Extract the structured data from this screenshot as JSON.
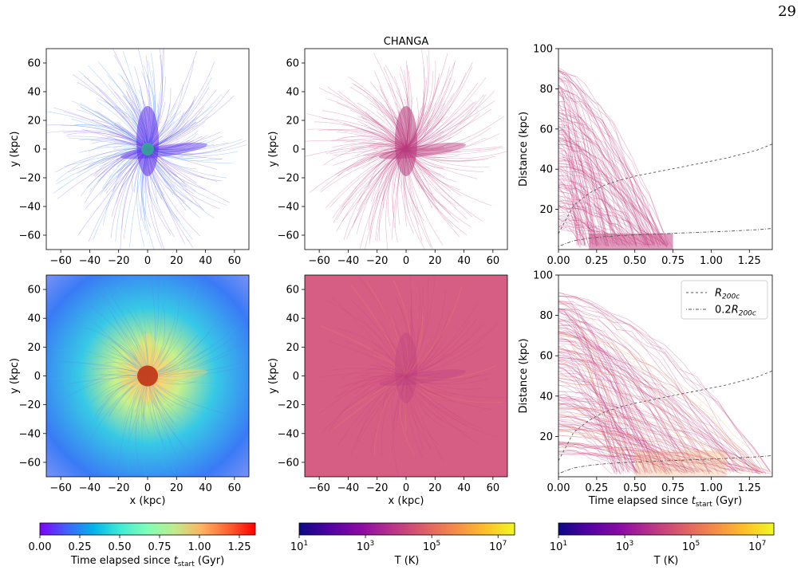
{
  "page": {
    "number": "29"
  },
  "colors": {
    "rainbow": [
      "#8000ff",
      "#4062fa",
      "#00b5eb",
      "#40ecd4",
      "#80ffb4",
      "#c0eb8d",
      "#ffb360",
      "#ff6230",
      "#ff0000"
    ],
    "plasma": [
      "#0d0887",
      "#5302a3",
      "#8b0aa5",
      "#b83289",
      "#db5c68",
      "#f48849",
      "#febc2a",
      "#f0f921"
    ],
    "traj_top": "#c43a7c",
    "traj_bottom": "#d2507a",
    "traj_warm": "#f0a050",
    "r200c_line": "#555555"
  },
  "chart_data": [
    {
      "id": "top-left",
      "type": "scatter",
      "title": "",
      "xlabel": "",
      "ylabel": "y (kpc)",
      "xlim": [
        -70,
        70
      ],
      "ylim": [
        -70,
        70
      ],
      "xticks": [
        -60,
        -40,
        -20,
        0,
        20,
        40,
        60
      ],
      "yticks": [
        -60,
        -40,
        -20,
        0,
        20,
        40,
        60
      ],
      "colormap": "rainbow",
      "color_variable": "Time elapsed since t_start (Gyr)"
    },
    {
      "id": "top-middle",
      "type": "scatter",
      "title": "CHANGA",
      "xlabel": "",
      "ylabel": "y (kpc)",
      "xlim": [
        -70,
        70
      ],
      "ylim": [
        -70,
        70
      ],
      "xticks": [
        -60,
        -40,
        -20,
        0,
        20,
        40,
        60
      ],
      "yticks": [
        -60,
        -40,
        -20,
        0,
        20,
        40,
        60
      ],
      "colormap": "plasma",
      "color_variable": "T (K)"
    },
    {
      "id": "top-right",
      "type": "line",
      "title": "",
      "xlabel": "",
      "ylabel": "Distance (kpc)",
      "xlim": [
        0,
        1.4
      ],
      "ylim": [
        0,
        100
      ],
      "xticks": [
        0.0,
        0.25,
        0.5,
        0.75,
        1.0,
        1.25
      ],
      "xtick_labels": [
        "0.00",
        "0.25",
        "0.50",
        "0.75",
        "1.00",
        "1.25"
      ],
      "yticks": [
        20,
        40,
        60,
        80,
        100
      ],
      "legend": null,
      "series": [
        {
          "name": "R200c",
          "style": "dashed",
          "x": [
            0.0,
            0.1,
            0.2,
            0.3,
            0.4,
            0.5,
            0.6,
            0.7,
            0.8,
            0.9,
            1.0,
            1.1,
            1.2,
            1.3,
            1.4
          ],
          "y": [
            8,
            22,
            28,
            32,
            34.5,
            36.5,
            38,
            39.5,
            41,
            42.5,
            44,
            45.5,
            47.5,
            49.5,
            52.5
          ]
        },
        {
          "name": "0.2R200c",
          "style": "dash-dot",
          "x": [
            0.0,
            0.1,
            0.2,
            0.3,
            0.4,
            0.5,
            0.6,
            0.7,
            0.8,
            0.9,
            1.0,
            1.1,
            1.2,
            1.3,
            1.4
          ],
          "y": [
            1.6,
            4.4,
            5.6,
            6.4,
            6.9,
            7.3,
            7.6,
            7.9,
            8.2,
            8.5,
            8.8,
            9.1,
            9.5,
            9.9,
            10.5
          ]
        }
      ]
    },
    {
      "id": "bottom-left",
      "type": "scatter",
      "title": "",
      "xlabel": "x (kpc)",
      "ylabel": "y (kpc)",
      "xlim": [
        -70,
        70
      ],
      "ylim": [
        -70,
        70
      ],
      "xticks": [
        -60,
        -40,
        -20,
        0,
        20,
        40,
        60
      ],
      "yticks": [
        -60,
        -40,
        -20,
        0,
        20,
        40,
        60
      ],
      "colormap": "rainbow",
      "color_variable": "Time elapsed since t_start (Gyr)"
    },
    {
      "id": "bottom-middle",
      "type": "scatter",
      "title": "",
      "xlabel": "x (kpc)",
      "ylabel": "y (kpc)",
      "xlim": [
        -70,
        70
      ],
      "ylim": [
        -70,
        70
      ],
      "xticks": [
        -60,
        -40,
        -20,
        0,
        20,
        40,
        60
      ],
      "yticks": [
        -60,
        -40,
        -20,
        0,
        20,
        40,
        60
      ],
      "colormap": "plasma",
      "color_variable": "T (K)"
    },
    {
      "id": "bottom-right",
      "type": "line",
      "title": "",
      "xlabel": "Time elapsed since t_start (Gyr)",
      "ylabel": "Distance (kpc)",
      "xlim": [
        0,
        1.4
      ],
      "ylim": [
        0,
        100
      ],
      "xticks": [
        0.0,
        0.25,
        0.5,
        0.75,
        1.0,
        1.25
      ],
      "xtick_labels": [
        "0.00",
        "0.25",
        "0.50",
        "0.75",
        "1.00",
        "1.25"
      ],
      "yticks": [
        20,
        40,
        60,
        80,
        100
      ],
      "legend": "top-right",
      "series": [
        {
          "name": "R200c",
          "style": "dashed",
          "x": [
            0.0,
            0.1,
            0.2,
            0.3,
            0.4,
            0.5,
            0.6,
            0.7,
            0.8,
            0.9,
            1.0,
            1.1,
            1.2,
            1.3,
            1.4
          ],
          "y": [
            8,
            22,
            28,
            32,
            34.5,
            36.5,
            38,
            39.5,
            41,
            42.5,
            44,
            45.5,
            47.5,
            49.5,
            52.5
          ]
        },
        {
          "name": "0.2R200c",
          "style": "dash-dot",
          "x": [
            0.0,
            0.1,
            0.2,
            0.3,
            0.4,
            0.5,
            0.6,
            0.7,
            0.8,
            0.9,
            1.0,
            1.1,
            1.2,
            1.3,
            1.4
          ],
          "y": [
            1.6,
            4.4,
            5.6,
            6.4,
            6.9,
            7.3,
            7.6,
            7.9,
            8.2,
            8.5,
            8.8,
            9.1,
            9.5,
            9.9,
            10.5
          ]
        }
      ]
    }
  ],
  "colorbars": [
    {
      "id": "cbar-time",
      "scale": "linear",
      "min": 0,
      "max": 1.35,
      "colormap": "rainbow",
      "ticks": [
        0.0,
        0.25,
        0.5,
        0.75,
        1.0,
        1.25
      ],
      "tick_labels": [
        "0.00",
        "0.25",
        "0.50",
        "0.75",
        "1.00",
        "1.25"
      ],
      "label": "Time elapsed since t_start (Gyr)"
    },
    {
      "id": "cbar-temp-1",
      "scale": "log",
      "min": 1,
      "max": 7.5,
      "colormap": "plasma",
      "ticks": [
        1,
        3,
        5,
        7
      ],
      "tick_labels": [
        "10^1",
        "10^3",
        "10^5",
        "10^7"
      ],
      "label": "T (K)"
    },
    {
      "id": "cbar-temp-2",
      "scale": "log",
      "min": 1,
      "max": 7.5,
      "colormap": "plasma",
      "ticks": [
        1,
        3,
        5,
        7
      ],
      "tick_labels": [
        "10^1",
        "10^3",
        "10^5",
        "10^7"
      ],
      "label": "T (K)"
    }
  ]
}
